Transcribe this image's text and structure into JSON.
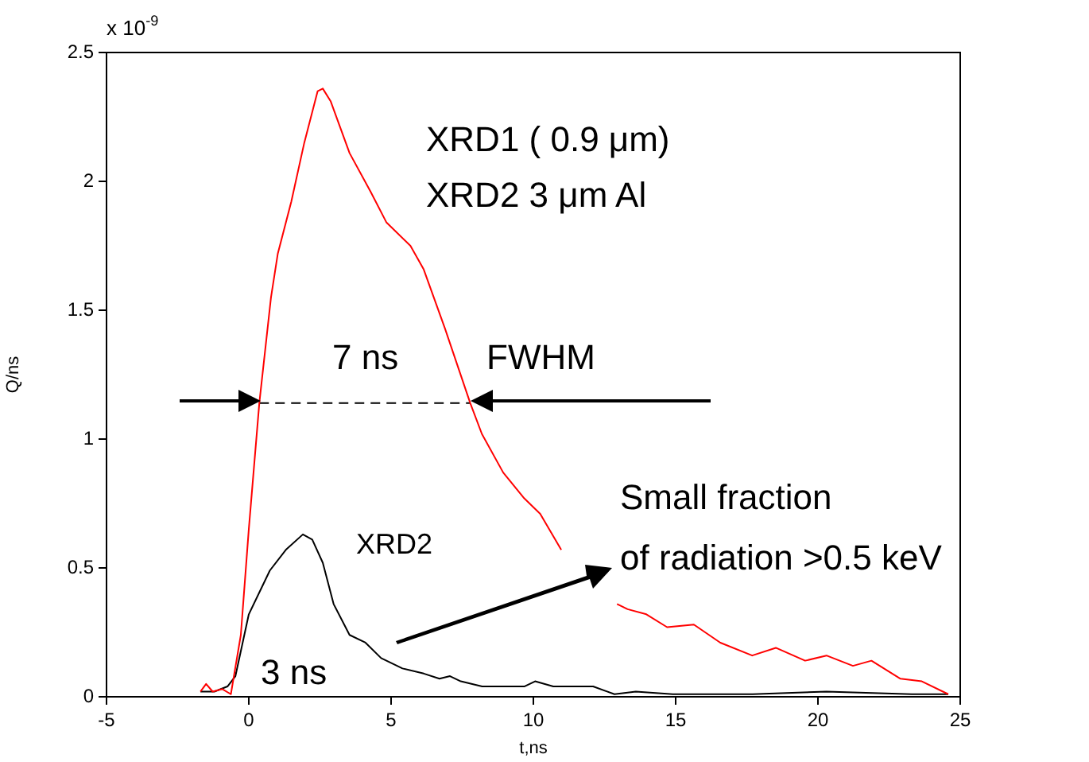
{
  "chart_data": {
    "type": "line",
    "xlabel": "t,ns",
    "ylabel": "Q/ns",
    "xlim": [
      -5,
      25
    ],
    "xticks": [
      -5,
      0,
      5,
      10,
      15,
      20,
      25
    ],
    "ylim": [
      0,
      2.5
    ],
    "yticks": [
      0,
      0.5,
      1,
      1.5,
      2,
      2.5
    ],
    "grid": false,
    "legend": false,
    "marker": "none",
    "line_style": "solid",
    "series": [
      {
        "color": "#ff0000",
        "x": [
          -1.7,
          -1.5,
          -1.27,
          -0.93,
          -0.63,
          -0.28,
          0,
          0.37,
          0.78,
          1.02,
          1.49,
          1.95,
          2.42,
          2.6,
          2.88,
          3.54,
          4.28,
          4.84,
          5.68,
          6.14,
          6.89,
          7.78,
          8.19,
          8.94,
          9.68,
          10.24,
          10.98,
          11.92,
          12.4,
          12.94,
          13.31,
          13.97,
          14.7,
          15.64,
          16.57,
          17.69,
          18.52,
          19.55,
          20.3,
          21.23,
          21.88,
          22.9,
          23.65,
          24.58
        ],
        "values": [
          0.02,
          0.05,
          0.02,
          0.03,
          0.01,
          0.24,
          0.65,
          1.14,
          1.55,
          1.72,
          1.92,
          2.15,
          2.35,
          2.36,
          2.31,
          2.11,
          1.96,
          1.84,
          1.75,
          1.66,
          1.43,
          1.14,
          1.02,
          0.87,
          0.77,
          0.71,
          0.57,
          null,
          null,
          0.36,
          0.34,
          0.32,
          0.27,
          0.28,
          0.21,
          0.16,
          0.19,
          0.14,
          0.16,
          0.12,
          0.14,
          0.07,
          0.06,
          0.01
        ]
      },
      {
        "color": "#000000",
        "x": [
          -1.7,
          -1.21,
          -0.75,
          -0.47,
          0,
          0.74,
          1.3,
          1.9,
          2.23,
          2.6,
          2.98,
          3.54,
          4.1,
          4.65,
          5.4,
          6.15,
          6.7,
          7.07,
          7.45,
          8.2,
          9.68,
          10.06,
          10.7,
          10.98,
          12.1,
          12.85,
          13.6,
          14.9,
          17.7,
          20.3,
          23.3,
          24.58
        ],
        "values": [
          0.02,
          0.02,
          0.04,
          0.08,
          0.32,
          0.49,
          0.57,
          0.63,
          0.61,
          0.52,
          0.36,
          0.24,
          0.21,
          0.15,
          0.11,
          0.09,
          0.07,
          0.08,
          0.06,
          0.04,
          0.04,
          0.06,
          0.04,
          0.04,
          0.04,
          0.01,
          0.02,
          0.01,
          0.01,
          0.02,
          0.01,
          0.01
        ]
      },
      {
        "type": "line",
        "color": "#000000",
        "line_style": "dashed",
        "x": [
          0.37,
          7.78
        ],
        "values": [
          1.14,
          1.14
        ]
      }
    ],
    "annotations": [
      "x 10$^{-9}$",
      "XRD1 ( 0.9 μm)",
      "XRD2 3 μm Al",
      "7 ns",
      "FWHM",
      "XRD2",
      "3 ns",
      "Small fraction",
      "of radiation >0.5 keV"
    ]
  }
}
